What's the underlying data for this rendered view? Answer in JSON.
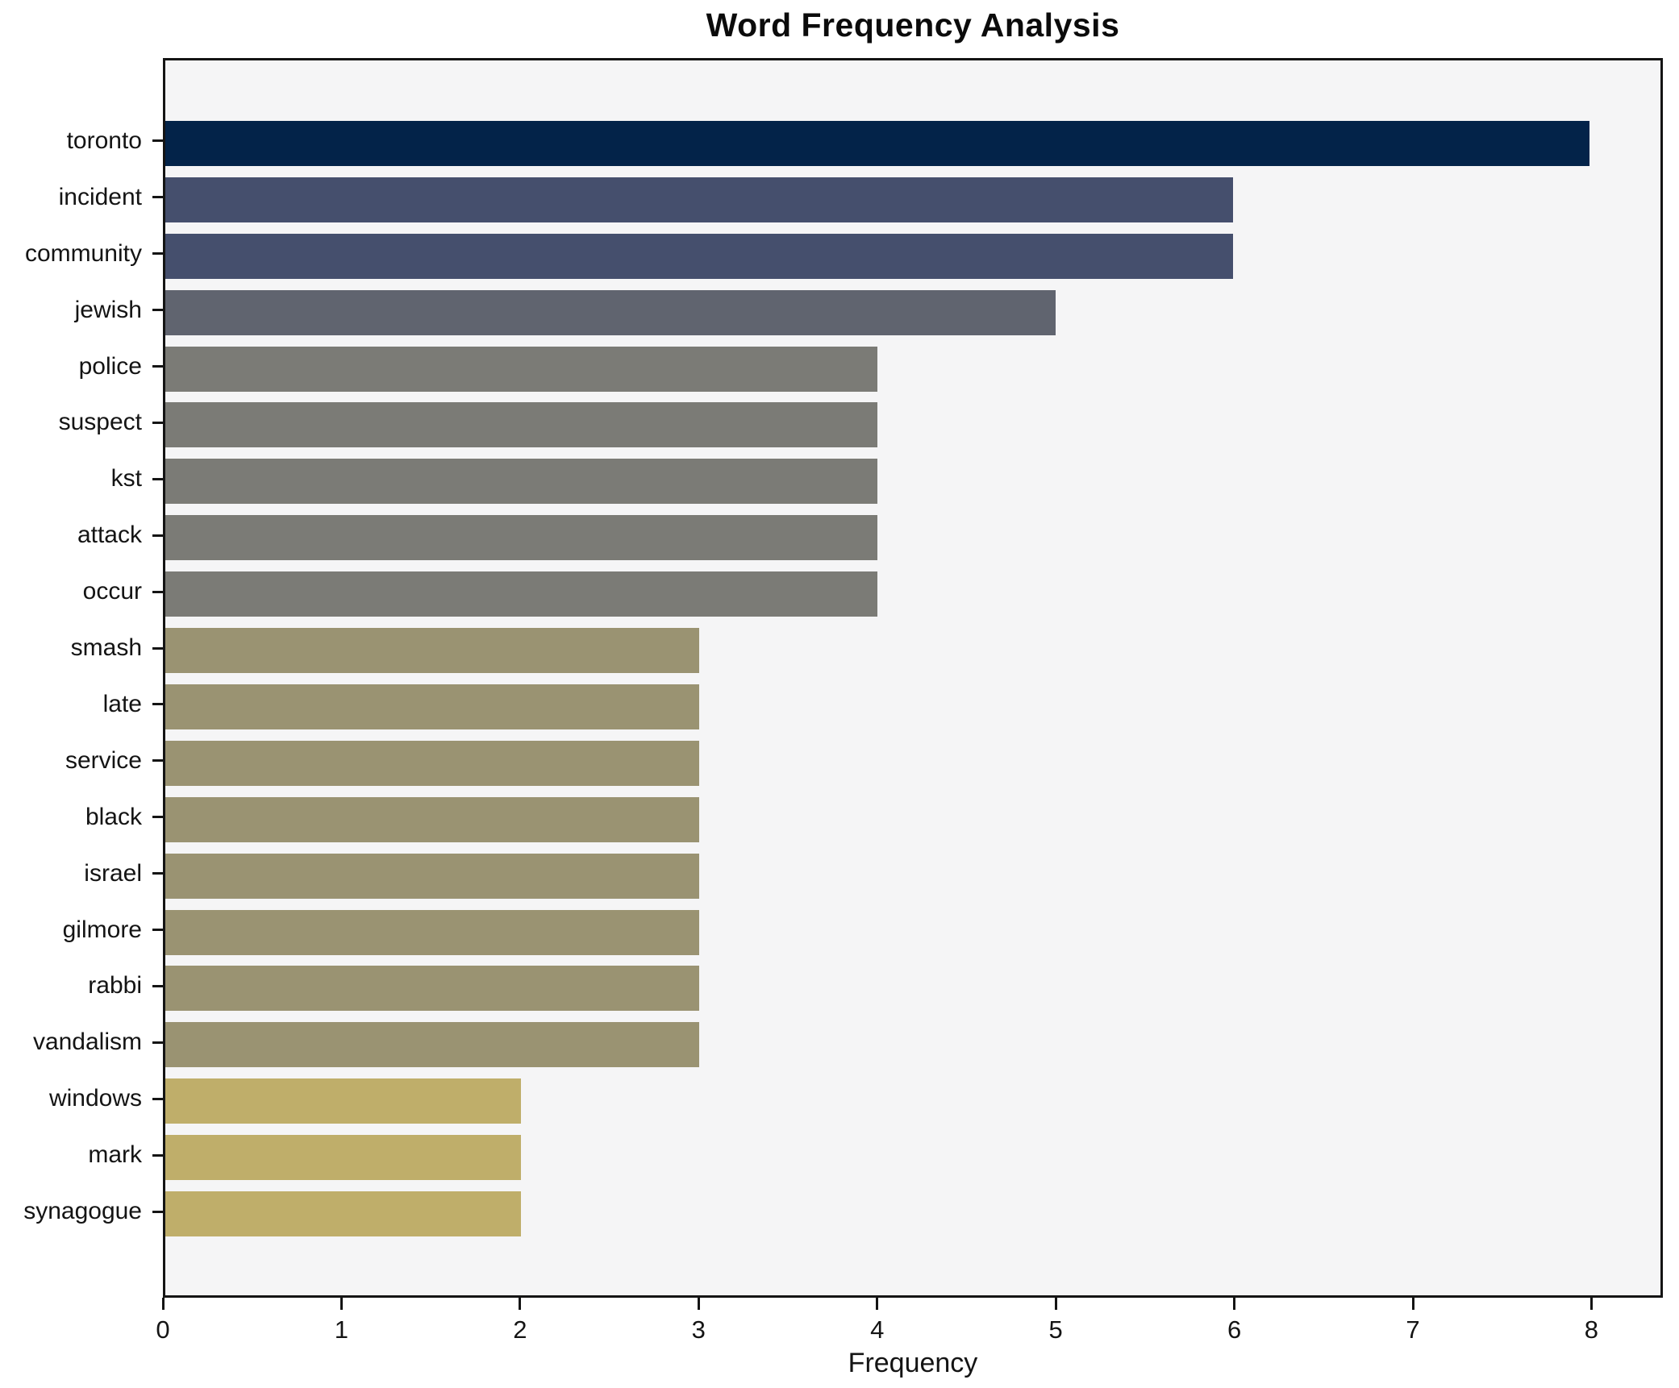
{
  "title": "Word Frequency Analysis",
  "axes": {
    "xlabel": "Frequency",
    "x_ticks": [
      "0",
      "1",
      "2",
      "3",
      "4",
      "5",
      "6",
      "7",
      "8"
    ],
    "x_tick_values": [
      0,
      1,
      2,
      3,
      4,
      5,
      6,
      7,
      8
    ]
  },
  "colors": {
    "figure_background": "#ffffff",
    "plot_background": "#f5f5f6",
    "axis_spine": "#141414",
    "text": "#141414"
  },
  "chart_data": {
    "type": "bar",
    "orientation": "horizontal",
    "title": "Word Frequency Analysis",
    "xlabel": "Frequency",
    "ylabel": "",
    "xlim": [
      0,
      8.4
    ],
    "grid": false,
    "legend": false,
    "categories": [
      "toronto",
      "incident",
      "community",
      "jewish",
      "police",
      "suspect",
      "kst",
      "attack",
      "occur",
      "smash",
      "late",
      "service",
      "black",
      "israel",
      "gilmore",
      "rabbi",
      "vandalism",
      "windows",
      "mark",
      "synagogue"
    ],
    "values": [
      8,
      6,
      6,
      5,
      4,
      4,
      4,
      4,
      4,
      3,
      3,
      3,
      3,
      3,
      3,
      3,
      3,
      2,
      2,
      2
    ],
    "bar_colors": [
      "#032349",
      "#454f6d",
      "#454f6d",
      "#60646f",
      "#7b7b76",
      "#7b7b76",
      "#7b7b76",
      "#7b7b76",
      "#7b7b76",
      "#9a9372",
      "#9a9372",
      "#9a9372",
      "#9a9372",
      "#9a9372",
      "#9a9372",
      "#9a9372",
      "#9a9372",
      "#bfae6a",
      "#bfae6a",
      "#bfae6a"
    ]
  }
}
